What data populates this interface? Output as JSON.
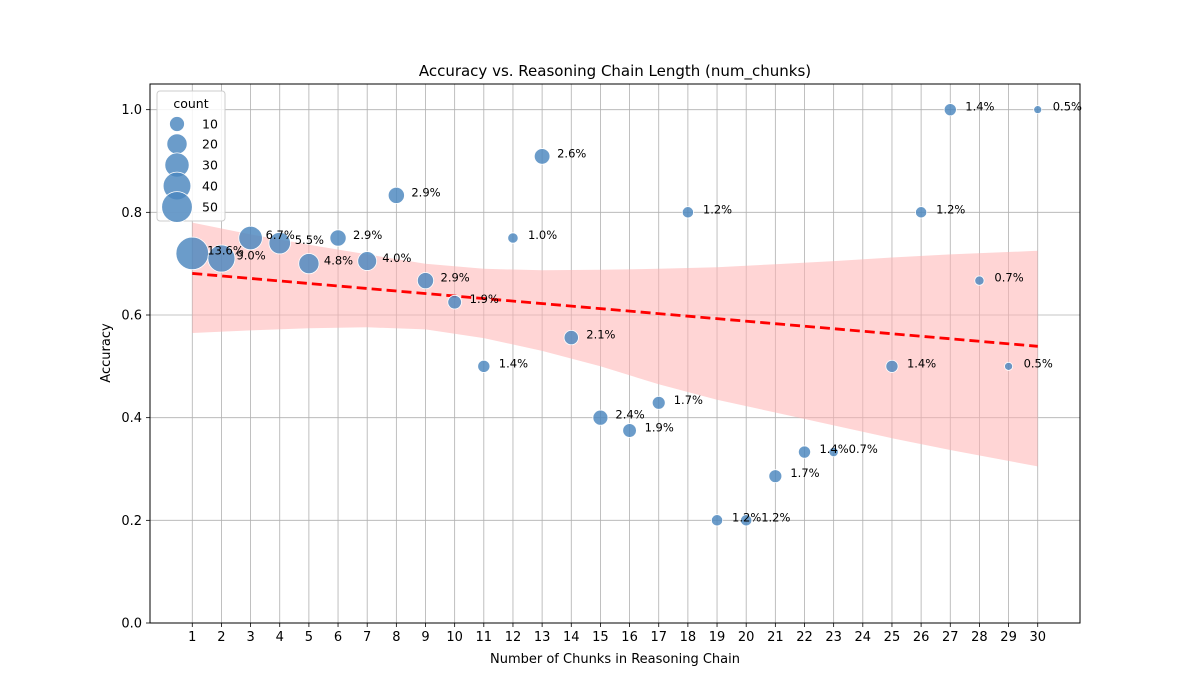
{
  "chart_data": {
    "type": "scatter",
    "title": "Accuracy vs. Reasoning Chain Length (num_chunks)",
    "xlabel": "Number of Chunks in Reasoning Chain",
    "ylabel": "Accuracy",
    "xlim": [
      -0.45,
      31.45
    ],
    "ylim": [
      0,
      1.05
    ],
    "xticks": [
      "1",
      "2",
      "3",
      "4",
      "5",
      "6",
      "7",
      "8",
      "9",
      "10",
      "11",
      "12",
      "13",
      "14",
      "15",
      "16",
      "17",
      "18",
      "19",
      "20",
      "21",
      "22",
      "23",
      "24",
      "25",
      "26",
      "27",
      "28",
      "29",
      "30"
    ],
    "yticks": [
      "0.0",
      "0.2",
      "0.4",
      "0.6",
      "0.8",
      "1.0"
    ],
    "grid": true,
    "point_color": "#4a86be",
    "points": [
      {
        "x": 1,
        "y": 0.72,
        "count": 57,
        "label": "13.6%"
      },
      {
        "x": 2,
        "y": 0.71,
        "count": 38,
        "label": "9.0%"
      },
      {
        "x": 3,
        "y": 0.75,
        "count": 28,
        "label": "6.7%"
      },
      {
        "x": 4,
        "y": 0.74,
        "count": 23,
        "label": "5.5%"
      },
      {
        "x": 5,
        "y": 0.7,
        "count": 20,
        "label": "4.8%"
      },
      {
        "x": 6,
        "y": 0.75,
        "count": 12,
        "label": "2.9%"
      },
      {
        "x": 7,
        "y": 0.705,
        "count": 17,
        "label": "4.0%"
      },
      {
        "x": 8,
        "y": 0.833,
        "count": 12,
        "label": "2.9%"
      },
      {
        "x": 9,
        "y": 0.667,
        "count": 12,
        "label": "2.9%"
      },
      {
        "x": 10,
        "y": 0.625,
        "count": 8,
        "label": "1.9%"
      },
      {
        "x": 11,
        "y": 0.5,
        "count": 6,
        "label": "1.4%"
      },
      {
        "x": 12,
        "y": 0.75,
        "count": 4,
        "label": "1.0%"
      },
      {
        "x": 13,
        "y": 0.909,
        "count": 11,
        "label": "2.6%"
      },
      {
        "x": 14,
        "y": 0.556,
        "count": 9,
        "label": "2.1%"
      },
      {
        "x": 15,
        "y": 0.4,
        "count": 10,
        "label": "2.4%"
      },
      {
        "x": 16,
        "y": 0.375,
        "count": 8,
        "label": "1.9%"
      },
      {
        "x": 17,
        "y": 0.429,
        "count": 7,
        "label": "1.7%"
      },
      {
        "x": 18,
        "y": 0.8,
        "count": 5,
        "label": "1.2%"
      },
      {
        "x": 19,
        "y": 0.2,
        "count": 5,
        "label": "1.2%"
      },
      {
        "x": 20,
        "y": 0.2,
        "count": 5,
        "label": "1.2%"
      },
      {
        "x": 21,
        "y": 0.286,
        "count": 7,
        "label": "1.7%"
      },
      {
        "x": 22,
        "y": 0.333,
        "count": 6,
        "label": "1.4%"
      },
      {
        "x": 23,
        "y": 0.333,
        "count": 3,
        "label": "0.7%"
      },
      {
        "x": 25,
        "y": 0.5,
        "count": 6,
        "label": "1.4%"
      },
      {
        "x": 26,
        "y": 0.8,
        "count": 5,
        "label": "1.2%"
      },
      {
        "x": 27,
        "y": 1.0,
        "count": 6,
        "label": "1.4%"
      },
      {
        "x": 28,
        "y": 0.667,
        "count": 3,
        "label": "0.7%"
      },
      {
        "x": 29,
        "y": 0.5,
        "count": 2,
        "label": "0.5%"
      },
      {
        "x": 30,
        "y": 1.0,
        "count": 2,
        "label": "0.5%"
      }
    ],
    "trend": {
      "color": "#ff0000",
      "style": "dashed",
      "x": [
        1,
        30
      ],
      "y": [
        0.681,
        0.539
      ]
    },
    "confidence_band": {
      "color": "#ffb3b3",
      "x": [
        1,
        3,
        5,
        7,
        9,
        11,
        13,
        15,
        17,
        19,
        21,
        23,
        25,
        27,
        30
      ],
      "lower": [
        0.565,
        0.57,
        0.574,
        0.576,
        0.572,
        0.555,
        0.53,
        0.5,
        0.465,
        0.435,
        0.41,
        0.385,
        0.36,
        0.337,
        0.305
      ],
      "upper": [
        0.78,
        0.757,
        0.737,
        0.718,
        0.7,
        0.69,
        0.687,
        0.688,
        0.69,
        0.693,
        0.699,
        0.705,
        0.712,
        0.718,
        0.725
      ]
    },
    "legend": {
      "title": "count",
      "placement": "upper-left",
      "entries": [
        {
          "label": "10",
          "count": 10
        },
        {
          "label": "20",
          "count": 20
        },
        {
          "label": "30",
          "count": 30
        },
        {
          "label": "40",
          "count": 40
        },
        {
          "label": "50",
          "count": 50
        }
      ]
    }
  }
}
